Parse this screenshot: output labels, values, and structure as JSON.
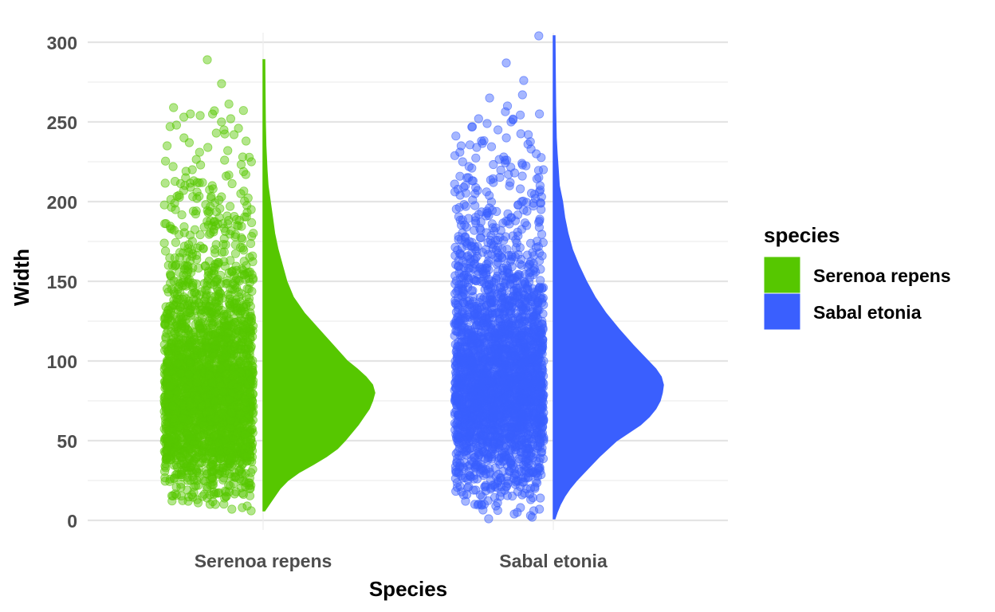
{
  "chart_data": {
    "type": "raincloud",
    "xlabel": "Species",
    "ylabel": "Width",
    "ylim": [
      0,
      305
    ],
    "yticks": [
      0,
      50,
      100,
      150,
      200,
      250,
      300
    ],
    "grid": true,
    "legend": {
      "title": "species",
      "position": "right",
      "entries": [
        "Serenoa repens",
        "Sabal etonia"
      ]
    },
    "series": [
      {
        "name": "Serenoa repens",
        "color": "#56c700",
        "min": 6,
        "max": 289,
        "density": [
          [
            6,
            0
          ],
          [
            10,
            0.04
          ],
          [
            15,
            0.09
          ],
          [
            20,
            0.14
          ],
          [
            25,
            0.21
          ],
          [
            30,
            0.31
          ],
          [
            35,
            0.44
          ],
          [
            40,
            0.56
          ],
          [
            45,
            0.66
          ],
          [
            50,
            0.73
          ],
          [
            55,
            0.79
          ],
          [
            60,
            0.85
          ],
          [
            65,
            0.9
          ],
          [
            70,
            0.95
          ],
          [
            75,
            0.98
          ],
          [
            80,
            1.0
          ],
          [
            85,
            0.98
          ],
          [
            90,
            0.92
          ],
          [
            95,
            0.84
          ],
          [
            100,
            0.75
          ],
          [
            110,
            0.62
          ],
          [
            120,
            0.49
          ],
          [
            130,
            0.36
          ],
          [
            140,
            0.26
          ],
          [
            150,
            0.2
          ],
          [
            160,
            0.16
          ],
          [
            170,
            0.12
          ],
          [
            180,
            0.09
          ],
          [
            190,
            0.07
          ],
          [
            200,
            0.05
          ],
          [
            210,
            0.03
          ],
          [
            220,
            0.02
          ],
          [
            235,
            0.01
          ],
          [
            250,
            0.005
          ],
          [
            270,
            0.002
          ],
          [
            289,
            0
          ]
        ],
        "outliers": [
          289,
          274,
          259,
          257,
          255,
          254,
          253,
          252,
          250,
          248,
          246,
          245,
          243,
          242,
          240,
          238,
          237,
          235,
          234,
          232,
          228,
          225,
          223,
          222,
          220,
          219,
          217,
          216,
          215,
          212,
          210,
          209,
          208,
          207,
          206,
          205,
          204,
          203,
          202,
          201,
          199,
          197,
          195,
          194,
          30,
          25,
          22,
          20,
          19,
          18,
          17,
          16,
          15,
          14,
          13,
          12,
          11,
          10,
          9,
          8,
          7,
          6
        ]
      },
      {
        "name": "Sabal etonia",
        "color": "#3a5ffe",
        "min": 1,
        "max": 304,
        "density": [
          [
            1,
            0
          ],
          [
            5,
            0.02
          ],
          [
            10,
            0.05
          ],
          [
            15,
            0.09
          ],
          [
            20,
            0.14
          ],
          [
            25,
            0.2
          ],
          [
            30,
            0.27
          ],
          [
            35,
            0.34
          ],
          [
            40,
            0.41
          ],
          [
            45,
            0.49
          ],
          [
            50,
            0.57
          ],
          [
            55,
            0.68
          ],
          [
            60,
            0.79
          ],
          [
            65,
            0.87
          ],
          [
            70,
            0.93
          ],
          [
            75,
            0.97
          ],
          [
            80,
            0.99
          ],
          [
            85,
            1.0
          ],
          [
            90,
            0.98
          ],
          [
            95,
            0.93
          ],
          [
            100,
            0.86
          ],
          [
            110,
            0.72
          ],
          [
            120,
            0.59
          ],
          [
            130,
            0.47
          ],
          [
            140,
            0.37
          ],
          [
            150,
            0.29
          ],
          [
            160,
            0.22
          ],
          [
            170,
            0.16
          ],
          [
            180,
            0.12
          ],
          [
            190,
            0.09
          ],
          [
            200,
            0.07
          ],
          [
            210,
            0.04
          ],
          [
            220,
            0.03
          ],
          [
            230,
            0.02
          ],
          [
            240,
            0.012
          ],
          [
            260,
            0.006
          ],
          [
            280,
            0.003
          ],
          [
            304,
            0
          ]
        ],
        "outliers": [
          304,
          287,
          276,
          267,
          265,
          260,
          255,
          252,
          250,
          249,
          247,
          245,
          242,
          240,
          238,
          236,
          235,
          233,
          231,
          230,
          228,
          226,
          225,
          224,
          223,
          222,
          221,
          220,
          218,
          216,
          215,
          213,
          212,
          211,
          210,
          209,
          207,
          205,
          204,
          203,
          202,
          201,
          200,
          199,
          197,
          196,
          195,
          194,
          193,
          192,
          191,
          190,
          189,
          188,
          187,
          186,
          185,
          30,
          28,
          26,
          25,
          24,
          22,
          21,
          20,
          19,
          18,
          17,
          16,
          15,
          14,
          13,
          12,
          11,
          10,
          9,
          8,
          7,
          6,
          5,
          4,
          3,
          2,
          1
        ]
      }
    ]
  }
}
